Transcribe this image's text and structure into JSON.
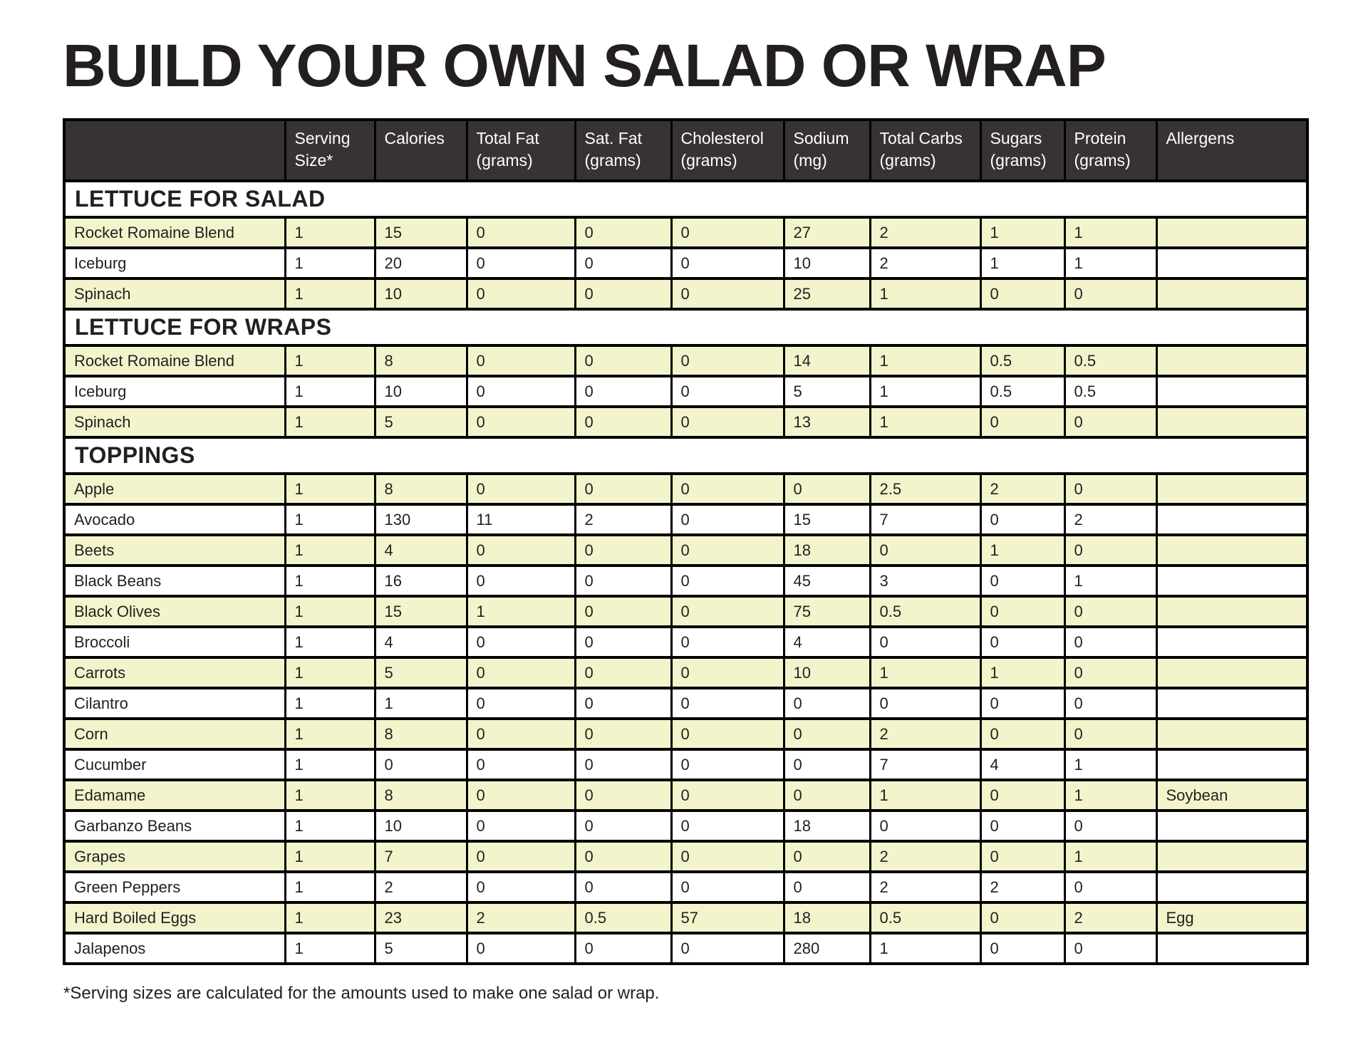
{
  "page": {
    "title": "BUILD YOUR OWN SALAD OR WRAP",
    "footnote": "*Serving sizes are calculated for the amounts used to make one salad or wrap."
  },
  "colors": {
    "header_bg": "#373233",
    "header_text": "#ffffff",
    "row_highlight": "#f3f4cc",
    "border": "#000000",
    "text": "#231f20"
  },
  "table": {
    "columns": [
      {
        "line1": "",
        "line2": ""
      },
      {
        "line1": "Serving",
        "line2": "Size*"
      },
      {
        "line1": "Calories",
        "line2": ""
      },
      {
        "line1": "Total Fat",
        "line2": "(grams)"
      },
      {
        "line1": "Sat. Fat",
        "line2": "(grams)"
      },
      {
        "line1": "Cholesterol",
        "line2": "(grams)"
      },
      {
        "line1": "Sodium",
        "line2": "(mg)"
      },
      {
        "line1": "Total Carbs",
        "line2": "(grams)"
      },
      {
        "line1": "Sugars",
        "line2": "(grams)"
      },
      {
        "line1": "Protein",
        "line2": "(grams)"
      },
      {
        "line1": "Allergens",
        "line2": ""
      }
    ],
    "sections": [
      {
        "title": "LETTUCE FOR SALAD",
        "rows": [
          {
            "name": "Rocket Romaine Blend",
            "values": [
              "1",
              "15",
              "0",
              "0",
              "0",
              "27",
              "2",
              "1",
              "1",
              ""
            ]
          },
          {
            "name": "Iceburg",
            "values": [
              "1",
              "20",
              "0",
              "0",
              "0",
              "10",
              "2",
              "1",
              "1",
              ""
            ]
          },
          {
            "name": "Spinach",
            "values": [
              "1",
              "10",
              "0",
              "0",
              "0",
              "25",
              "1",
              "0",
              "0",
              ""
            ]
          }
        ]
      },
      {
        "title": "LETTUCE FOR WRAPS",
        "rows": [
          {
            "name": "Rocket Romaine Blend",
            "values": [
              "1",
              "8",
              "0",
              "0",
              "0",
              "14",
              "1",
              "0.5",
              "0.5",
              ""
            ]
          },
          {
            "name": "Iceburg",
            "values": [
              "1",
              "10",
              "0",
              "0",
              "0",
              "5",
              "1",
              "0.5",
              "0.5",
              ""
            ]
          },
          {
            "name": "Spinach",
            "values": [
              "1",
              "5",
              "0",
              "0",
              "0",
              "13",
              "1",
              "0",
              "0",
              ""
            ]
          }
        ]
      },
      {
        "title": "TOPPINGS",
        "rows": [
          {
            "name": "Apple",
            "values": [
              "1",
              "8",
              "0",
              "0",
              "0",
              "0",
              "2.5",
              "2",
              "0",
              ""
            ]
          },
          {
            "name": "Avocado",
            "values": [
              "1",
              "130",
              "11",
              "2",
              "0",
              "15",
              "7",
              "0",
              "2",
              ""
            ]
          },
          {
            "name": "Beets",
            "values": [
              "1",
              "4",
              "0",
              "0",
              "0",
              "18",
              "0",
              "1",
              "0",
              ""
            ]
          },
          {
            "name": "Black Beans",
            "values": [
              "1",
              "16",
              "0",
              "0",
              "0",
              "45",
              "3",
              "0",
              "1",
              ""
            ]
          },
          {
            "name": "Black Olives",
            "values": [
              "1",
              "15",
              "1",
              "0",
              "0",
              "75",
              "0.5",
              "0",
              "0",
              ""
            ]
          },
          {
            "name": "Broccoli",
            "values": [
              "1",
              "4",
              "0",
              "0",
              "0",
              "4",
              "0",
              "0",
              "0",
              ""
            ]
          },
          {
            "name": "Carrots",
            "values": [
              "1",
              "5",
              "0",
              "0",
              "0",
              "10",
              "1",
              "1",
              "0",
              ""
            ]
          },
          {
            "name": "Cilantro",
            "values": [
              "1",
              "1",
              "0",
              "0",
              "0",
              "0",
              "0",
              "0",
              "0",
              ""
            ]
          },
          {
            "name": "Corn",
            "values": [
              "1",
              "8",
              "0",
              "0",
              "0",
              "0",
              "2",
              "0",
              "0",
              ""
            ]
          },
          {
            "name": "Cucumber",
            "values": [
              "1",
              "0",
              "0",
              "0",
              "0",
              "0",
              "7",
              "4",
              "1",
              ""
            ]
          },
          {
            "name": "Edamame",
            "values": [
              "1",
              "8",
              "0",
              "0",
              "0",
              "0",
              "1",
              "0",
              "1",
              "Soybean"
            ]
          },
          {
            "name": "Garbanzo Beans",
            "values": [
              "1",
              "10",
              "0",
              "0",
              "0",
              "18",
              "0",
              "0",
              "0",
              ""
            ]
          },
          {
            "name": "Grapes",
            "values": [
              "1",
              "7",
              "0",
              "0",
              "0",
              "0",
              "2",
              "0",
              "1",
              ""
            ]
          },
          {
            "name": "Green Peppers",
            "values": [
              "1",
              "2",
              "0",
              "0",
              "0",
              "0",
              "2",
              "2",
              "0",
              ""
            ]
          },
          {
            "name": "Hard Boiled Eggs",
            "values": [
              "1",
              "23",
              "2",
              "0.5",
              "57",
              "18",
              "0.5",
              "0",
              "2",
              "Egg"
            ]
          },
          {
            "name": "Jalapenos",
            "values": [
              "1",
              "5",
              "0",
              "0",
              "0",
              "280",
              "1",
              "0",
              "0",
              ""
            ]
          }
        ]
      }
    ]
  }
}
